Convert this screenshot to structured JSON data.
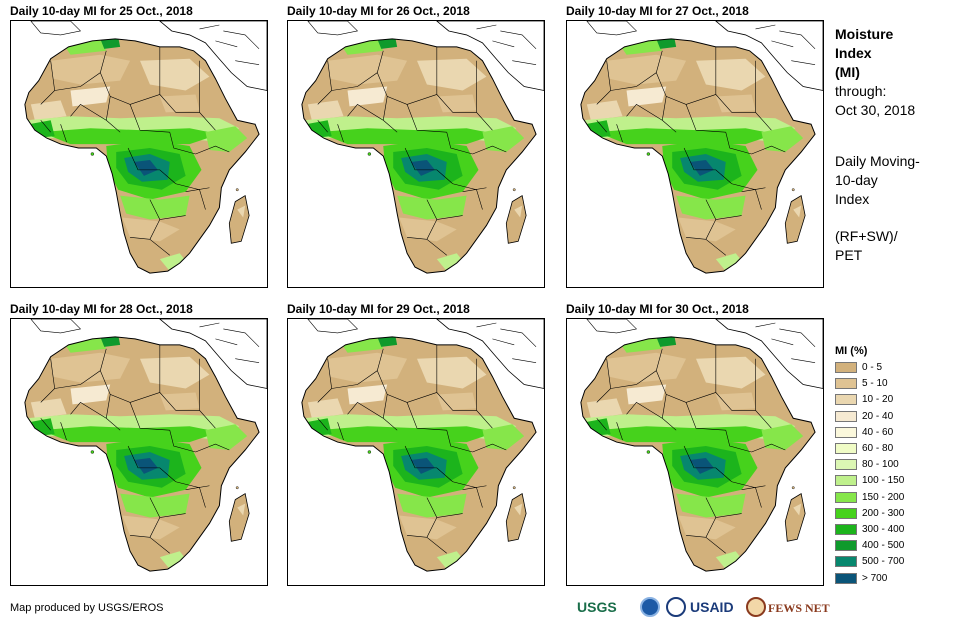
{
  "panels": [
    {
      "title": "Daily 10-day MI for 25 Oct., 2018"
    },
    {
      "title": "Daily 10-day MI for 26 Oct., 2018"
    },
    {
      "title": "Daily 10-day MI for 27 Oct., 2018"
    },
    {
      "title": "Daily 10-day MI for 28 Oct., 2018"
    },
    {
      "title": "Daily 10-day MI for 29 Oct., 2018"
    },
    {
      "title": "Daily 10-day MI for 30 Oct., 2018"
    }
  ],
  "info": {
    "title_line1": "Moisture",
    "title_line2": "Index",
    "title_line3": "(MI)",
    "through": "through:",
    "date": "Oct 30, 2018",
    "desc_line1": "Daily Moving-",
    "desc_line2": "10-day",
    "desc_line3": "Index",
    "formula_line1": "(RF+SW)/",
    "formula_line2": "PET"
  },
  "legend": {
    "title": "MI (%)",
    "items": [
      {
        "label": "0 - 5",
        "color": "#d2b17c"
      },
      {
        "label": "5 - 10",
        "color": "#dfc393"
      },
      {
        "label": "10 - 20",
        "color": "#ead7b0"
      },
      {
        "label": "20 - 40",
        "color": "#f6ead2"
      },
      {
        "label": "40 - 60",
        "color": "#fbf8dc"
      },
      {
        "label": "60 - 80",
        "color": "#f0fcc6"
      },
      {
        "label": "80 - 100",
        "color": "#dcf7b4"
      },
      {
        "label": "100 - 150",
        "color": "#bff08c"
      },
      {
        "label": "150 - 200",
        "color": "#86e64a"
      },
      {
        "label": "200 - 300",
        "color": "#46d21c"
      },
      {
        "label": "300 - 400",
        "color": "#1cb41c"
      },
      {
        "label": "400 - 500",
        "color": "#0f9a2c"
      },
      {
        "label": "500 - 700",
        "color": "#07876e"
      },
      {
        "label": "> 700",
        "color": "#0a5478"
      }
    ]
  },
  "footer": {
    "credit": "Map produced by USGS/EROS",
    "logo_usgs": "USGS",
    "logo_usaid": "USAID",
    "logo_fews": "FEWS NET"
  }
}
